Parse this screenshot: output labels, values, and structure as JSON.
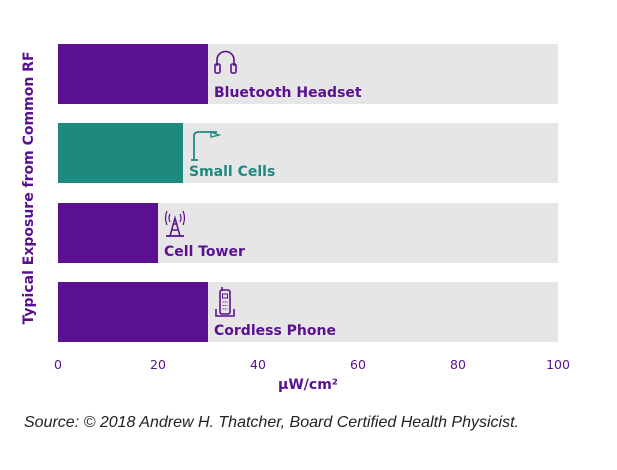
{
  "chart_data": {
    "type": "bar",
    "orientation": "horizontal",
    "categories": [
      "Bluetooth Headset",
      "Small Cells",
      "Cell Tower",
      "Cordless Phone"
    ],
    "values": [
      30,
      25,
      20,
      30
    ],
    "icons": [
      "headphones-icon",
      "streetlight-icon",
      "radio-tower-icon",
      "cordless-phone-icon"
    ],
    "bar_colors": [
      "#5a1090",
      "#1e8a7f",
      "#5a1090",
      "#5a1090"
    ],
    "label_colors": [
      "#5a1090",
      "#1e8a7f",
      "#5a1090",
      "#5a1090"
    ],
    "track_color": "#e6e6e6",
    "xlim": [
      0,
      100
    ],
    "xticks": [
      0,
      20,
      40,
      60,
      80,
      100
    ],
    "xlabel": "µW/cm²",
    "ylabel": "Typical Exposure from Common RF",
    "axis_color": "#5a1090",
    "grid": false,
    "legend": "none"
  },
  "source": "Source: © 2018 Andrew H. Thatcher, Board Certified Health Physicist."
}
